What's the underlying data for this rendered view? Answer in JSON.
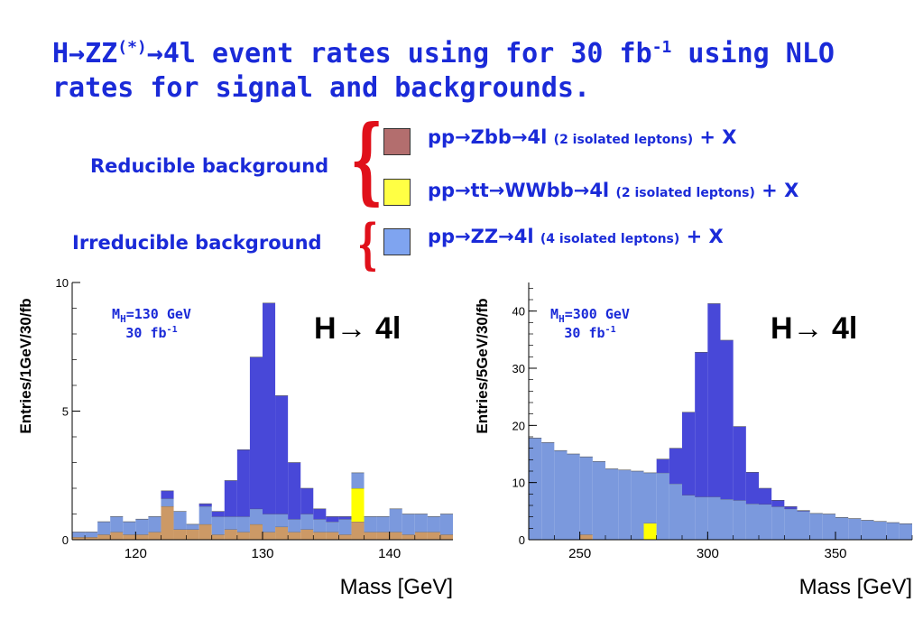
{
  "title": {
    "part1": "H→ZZ",
    "sup1": "(*)",
    "part2": "→4l event rates using for 30 fb",
    "sup2": "-1",
    "part3": " using NLO",
    "line2": "rates for signal and backgrounds."
  },
  "groups": {
    "reducible": "Reducible background",
    "irreducible": "Irreducible background"
  },
  "legend": [
    {
      "main": "pp→Zbb→4l",
      "note": "(2 isolated leptons)",
      "tail": " + X",
      "color": "#b36e6e"
    },
    {
      "main": "pp→tt→WWbb→4l",
      "note": "(2 isolated leptons)",
      "tail": " + X",
      "color": "#ffff44"
    },
    {
      "main": "pp→ZZ→4l",
      "note": "(4 isolated leptons)",
      "tail": " + X",
      "color": "#7fa4f0"
    }
  ],
  "colors": {
    "title": "#1a2ad8",
    "brace": "#e0101a",
    "signal": "#4848d8",
    "zz": "#7b99dd",
    "zbb": "#cc9966",
    "tt": "#ffff00"
  },
  "chart_data": [
    {
      "type": "area",
      "stacked": true,
      "ylabel": "Entries/1GeV/30/fb",
      "xlabel": "Mass [GeV]",
      "annotation_mass": "M",
      "annotation_sub": "H",
      "annotation_value": "=130 GeV",
      "annotation_lumi": "30 fb",
      "annotation_lumi_sup": "-1",
      "process_label": "H→ 4l",
      "xlim": [
        115,
        145
      ],
      "ylim": [
        0,
        10
      ],
      "xticks": [
        120,
        130,
        140
      ],
      "yticks": [
        0,
        5,
        10
      ],
      "bin_width": 1,
      "x_bin_starts": [
        115,
        116,
        117,
        118,
        119,
        120,
        121,
        122,
        123,
        124,
        125,
        126,
        127,
        128,
        129,
        130,
        131,
        132,
        133,
        134,
        135,
        136,
        137,
        138,
        139,
        140,
        141,
        142,
        143,
        144
      ],
      "series": [
        {
          "key": "zbb",
          "values": [
            0.1,
            0.1,
            0.2,
            0.3,
            0.2,
            0.2,
            0.3,
            1.3,
            0.4,
            0.4,
            0.6,
            0.2,
            0.4,
            0.3,
            0.6,
            0.3,
            0.5,
            0.3,
            0.4,
            0.3,
            0.3,
            0.2,
            0.7,
            0.3,
            0.3,
            0.3,
            0.2,
            0.3,
            0.3,
            0.2
          ]
        },
        {
          "key": "tt",
          "values": [
            0,
            0,
            0,
            0,
            0,
            0,
            0,
            0,
            0,
            0,
            0,
            0,
            0,
            0,
            0,
            0,
            0,
            0,
            0,
            0,
            0,
            0,
            1.3,
            0,
            0,
            0,
            0,
            0,
            0,
            0
          ]
        },
        {
          "key": "zz",
          "values": [
            0.2,
            0.2,
            0.5,
            0.6,
            0.5,
            0.6,
            0.6,
            0.3,
            0.7,
            0.2,
            0.7,
            0.7,
            0.5,
            0.6,
            0.6,
            0.7,
            0.5,
            0.5,
            0.6,
            0.5,
            0.4,
            0.6,
            0.6,
            0.6,
            0.6,
            0.9,
            0.8,
            0.7,
            0.6,
            0.8
          ]
        },
        {
          "key": "signal",
          "values": [
            0,
            0,
            0,
            0,
            0,
            0,
            0,
            0.3,
            0,
            0,
            0.1,
            0.2,
            1.4,
            2.6,
            5.9,
            8.2,
            4.6,
            2.2,
            1.0,
            0.4,
            0.2,
            0.1,
            0,
            0,
            0,
            0,
            0,
            0,
            0,
            0
          ]
        }
      ]
    },
    {
      "type": "area",
      "stacked": true,
      "ylabel": "Entries/5GeV/30/fb",
      "xlabel": "Mass [GeV]",
      "annotation_mass": "M",
      "annotation_sub": "H",
      "annotation_value": "=300 GeV",
      "annotation_lumi": "30 fb",
      "annotation_lumi_sup": "-1",
      "process_label": "H→ 4l",
      "xlim": [
        230,
        380
      ],
      "ylim": [
        0,
        45
      ],
      "xticks": [
        250,
        300,
        350
      ],
      "yticks": [
        0,
        10,
        20,
        30,
        40
      ],
      "bin_width": 5,
      "x_bin_starts": [
        230,
        235,
        240,
        245,
        250,
        255,
        260,
        265,
        270,
        275,
        280,
        285,
        290,
        295,
        300,
        305,
        310,
        315,
        320,
        325,
        330,
        335,
        340,
        345,
        350,
        355,
        360,
        365,
        370,
        375
      ],
      "series": [
        {
          "key": "zbb",
          "values": [
            0,
            0,
            0,
            0,
            0.9,
            0,
            0,
            0,
            0,
            0,
            0,
            0,
            0,
            0,
            0,
            0,
            0,
            0,
            0,
            0,
            0,
            0,
            0,
            0,
            0,
            0,
            0,
            0,
            0,
            0
          ]
        },
        {
          "key": "tt",
          "values": [
            0,
            0,
            0,
            0,
            0,
            0,
            0,
            0,
            0,
            2.9,
            0,
            0,
            0,
            0,
            0,
            0,
            0,
            0,
            0,
            0,
            0,
            0,
            0,
            0,
            0,
            0,
            0,
            0,
            0,
            0
          ]
        },
        {
          "key": "zz",
          "values": [
            17.8,
            17.0,
            15.6,
            15.0,
            13.6,
            13.7,
            12.4,
            12.2,
            12.0,
            8.8,
            11.7,
            9.8,
            7.8,
            7.5,
            7.5,
            7.1,
            6.9,
            6.3,
            6.2,
            5.8,
            5.4,
            5.0,
            4.6,
            4.5,
            3.9,
            3.7,
            3.4,
            3.2,
            3.0,
            2.8
          ]
        },
        {
          "key": "signal",
          "values": [
            0,
            0,
            0,
            0,
            0,
            0,
            0,
            0,
            0,
            0,
            2.4,
            6.2,
            14.5,
            25.3,
            33.8,
            27.8,
            12.9,
            5.5,
            2.8,
            1.1,
            0.4,
            0.1,
            0,
            0,
            0,
            0,
            0,
            0,
            0,
            0
          ]
        }
      ]
    }
  ]
}
